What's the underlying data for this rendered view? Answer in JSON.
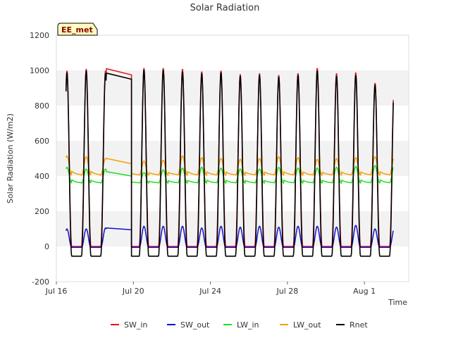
{
  "chart_data": {
    "type": "line",
    "title": "Solar Radiation",
    "xlabel": "Time",
    "ylabel": "Solar Radiation (W/m2)",
    "annotation": "EE_met",
    "ylim": [
      -200,
      1200
    ],
    "yticks": [
      -200,
      0,
      200,
      400,
      600,
      800,
      1000,
      1200
    ],
    "xlim": [
      0,
      18.3
    ],
    "xticks": [
      {
        "x": 0,
        "label": "Jul 16"
      },
      {
        "x": 4,
        "label": "Jul 20"
      },
      {
        "x": 8,
        "label": "Jul 24"
      },
      {
        "x": 12,
        "label": "Jul 28"
      },
      {
        "x": 16,
        "label": "Aug 1"
      }
    ],
    "grid": "alternating horizontal bands",
    "legend": "bottom",
    "day_start": 0.5,
    "day_end": 17.5,
    "gap": [
      2.6,
      3.9
    ],
    "noon_offset": 0.55,
    "series": [
      {
        "name": "SW_in",
        "color": "#e8101a",
        "peaks": [
          1000,
          1010,
          1000,
          1020,
          1015,
          1015,
          1010,
          995,
          1000,
          980,
          985,
          975,
          985,
          1015,
          985,
          990,
          930
        ],
        "night": 0,
        "gap_start": 1010,
        "gap_end": 975
      },
      {
        "name": "SW_out",
        "color": "#1010d0",
        "peaks": [
          100,
          100,
          105,
          110,
          115,
          115,
          115,
          105,
          115,
          110,
          115,
          110,
          115,
          115,
          110,
          120,
          100
        ],
        "night": -5,
        "gap_start": 105,
        "gap_end": 95
      },
      {
        "name": "LW_in",
        "color": "#22dd22",
        "peaks": [
          450,
          440,
          440,
          410,
          420,
          435,
          445,
          450,
          445,
          440,
          440,
          450,
          445,
          445,
          450,
          455,
          460
        ],
        "night": 360,
        "gap_start": 425,
        "gap_end": 400
      },
      {
        "name": "LW_out",
        "color": "#f5a000",
        "peaks": [
          515,
          510,
          500,
          490,
          485,
          490,
          515,
          505,
          500,
          495,
          500,
          510,
          505,
          495,
          500,
          505,
          510
        ],
        "night": 405,
        "gap_start": 500,
        "gap_end": 470
      },
      {
        "name": "Rnet",
        "color": "#000000",
        "peaks": [
          990,
          1000,
          985,
          1010,
          1005,
          1005,
          995,
          985,
          990,
          970,
          975,
          965,
          975,
          1000,
          970,
          975,
          920
        ],
        "night": -55,
        "gap_start": 985,
        "gap_end": 950
      }
    ]
  }
}
